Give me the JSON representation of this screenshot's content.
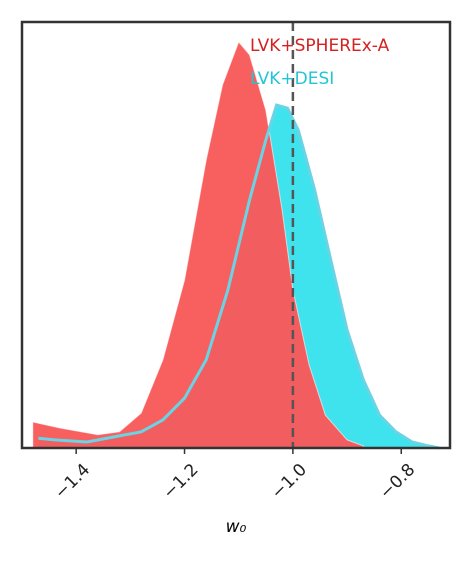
{
  "chart_data": {
    "type": "area",
    "xlabel": "w₀",
    "xlim": [
      -1.5,
      -0.71
    ],
    "ylim": [
      0,
      1
    ],
    "xticks": [
      {
        "value": -1.4,
        "label": "−1.4"
      },
      {
        "value": -1.2,
        "label": "−1.2"
      },
      {
        "value": -1.0,
        "label": "−1.0"
      },
      {
        "value": -0.8,
        "label": "−0.8"
      }
    ],
    "vline": -1.0,
    "series": [
      {
        "name": "LVK+DESI",
        "color": "#3fe3ee",
        "x": [
          -1.47,
          -1.44,
          -1.38,
          -1.33,
          -1.28,
          -1.24,
          -1.2,
          -1.16,
          -1.12,
          -1.08,
          -1.05,
          -1.03,
          -1.01,
          -0.99,
          -0.96,
          -0.93,
          -0.9,
          -0.87,
          -0.84,
          -0.81,
          -0.78,
          -0.75,
          -0.73
        ],
        "values": [
          0.023,
          0.019,
          0.014,
          0.026,
          0.038,
          0.066,
          0.117,
          0.207,
          0.371,
          0.582,
          0.723,
          0.805,
          0.798,
          0.746,
          0.606,
          0.441,
          0.277,
          0.16,
          0.077,
          0.038,
          0.014,
          0.005,
          0
        ]
      },
      {
        "name": "LVK+SPHEREx-A",
        "color": "#f85a5a",
        "x": [
          -1.48,
          -1.43,
          -1.36,
          -1.32,
          -1.28,
          -1.24,
          -1.2,
          -1.16,
          -1.13,
          -1.1,
          -1.08,
          -1.05,
          -1.02,
          -1.0,
          -0.97,
          -0.94,
          -0.9,
          -0.87
        ],
        "values": [
          0.061,
          0.047,
          0.031,
          0.038,
          0.082,
          0.207,
          0.394,
          0.676,
          0.852,
          0.953,
          0.923,
          0.793,
          0.559,
          0.371,
          0.195,
          0.077,
          0.019,
          0.005
        ]
      }
    ]
  }
}
